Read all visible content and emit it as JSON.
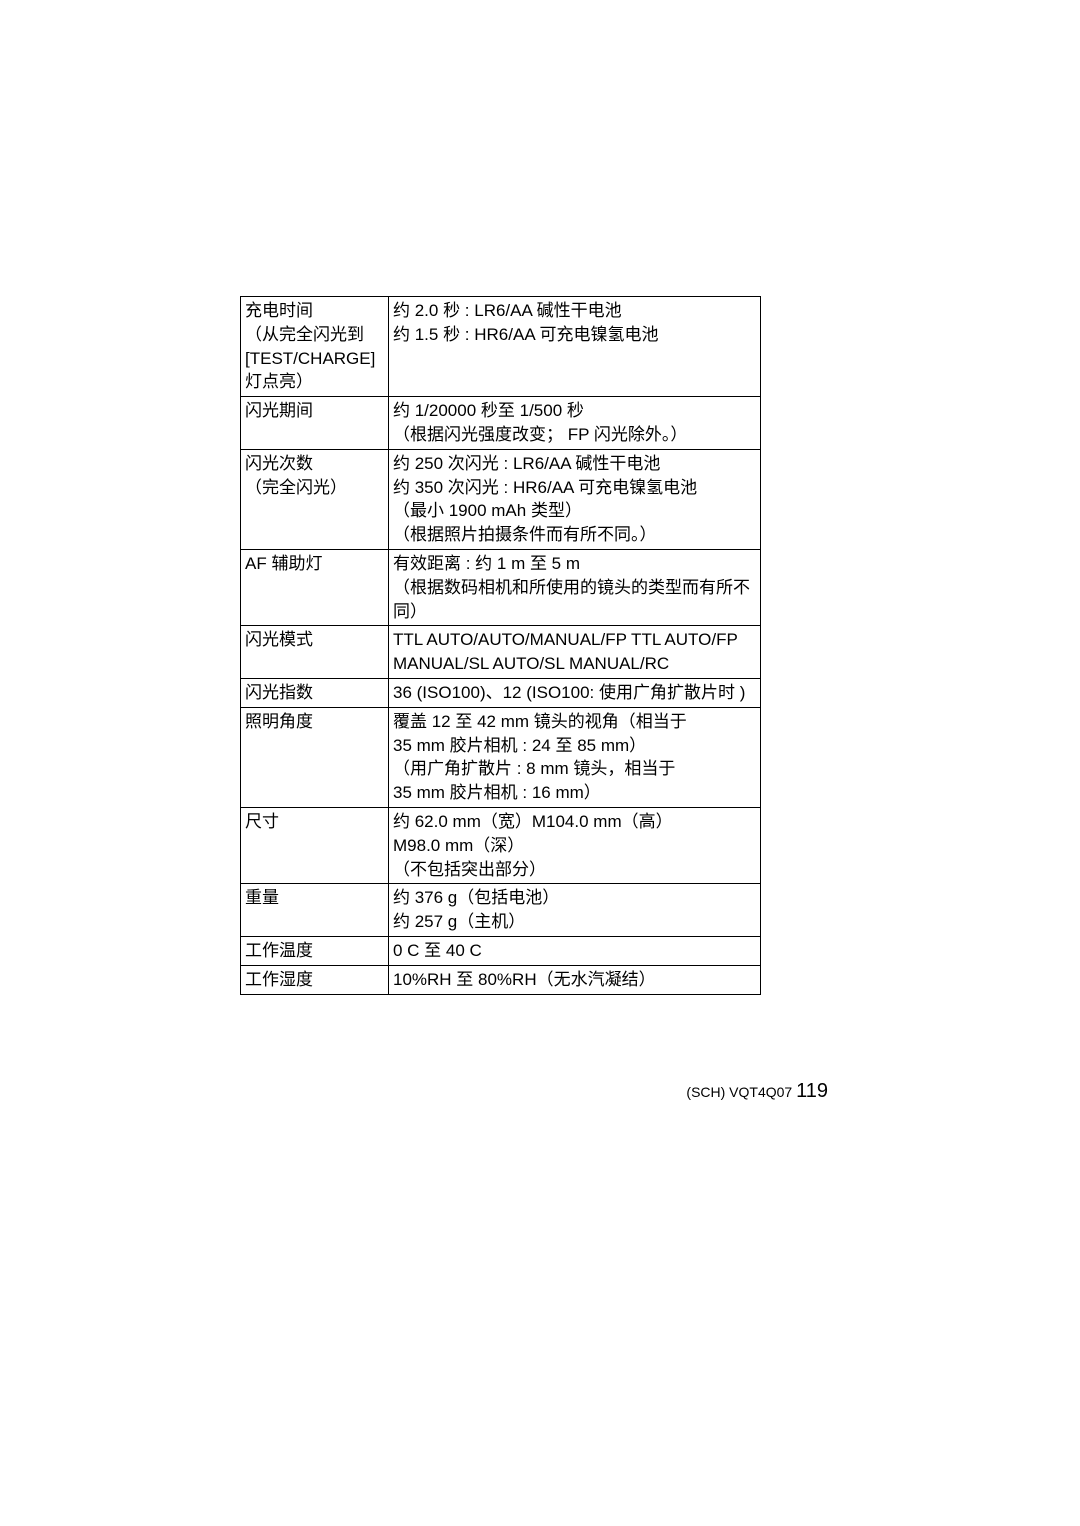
{
  "rows": {
    "r0": {
      "label": [
        "充电时间",
        "（从完全闪光到",
        "[TEST/CHARGE]",
        "灯点亮）"
      ],
      "value": [
        "约 2.0 秒 : LR6/AA 碱性干电池",
        "约 1.5 秒 : HR6/AA 可充电镍氢电池"
      ]
    },
    "r1": {
      "label": [
        "闪光期间"
      ],
      "value": [
        "约 1/20000 秒至 1/500 秒",
        "（根据闪光强度改变； FP 闪光除外。）"
      ]
    },
    "r2": {
      "label": [
        "闪光次数",
        "（完全闪光）"
      ],
      "value": [
        "约 250 次闪光 : LR6/AA 碱性干电池",
        "约 350 次闪光 : HR6/AA 可充电镍氢电池",
        "（最小 1900 mAh 类型）",
        "（根据照片拍摄条件而有所不同。）"
      ]
    },
    "r3": {
      "label": [
        "AF 辅助灯"
      ],
      "value": [
        "有效距离 : 约 1 m 至 5 m",
        "（根据数码相机和所使用的镜头的类型而有所不同）"
      ]
    },
    "r4": {
      "label": [
        "闪光模式"
      ],
      "value": [
        "TTL AUTO/AUTO/MANUAL/FP TTL AUTO/FP MANUAL/SL AUTO/SL MANUAL/RC"
      ]
    },
    "r5": {
      "label": [
        "闪光指数"
      ],
      "value": [
        "36 (ISO100)、12 (ISO100: 使用广角扩散片时 )"
      ]
    },
    "r6": {
      "label": [
        "照明角度"
      ],
      "value": [
        "覆盖 12 至 42 mm 镜头的视角（相当于",
        "35 mm 胶片相机 : 24 至 85 mm）",
        "（用广角扩散片 : 8 mm 镜头，相当于",
        "35 mm 胶片相机 : 16 mm）"
      ]
    },
    "r7": {
      "label": [
        "尺寸"
      ],
      "value": [
        "约  62.0 mm（宽）M104.0 mm（高）",
        "M98.0 mm（深）",
        "（不包括突出部分）"
      ]
    },
    "r8": {
      "label": [
        "重量"
      ],
      "value": [
        "约 376 g（包括电池）",
        "约 257 g（主机）"
      ]
    },
    "r9": {
      "label": [
        "工作温度"
      ],
      "value": [
        "0  C 至 40  C"
      ]
    },
    "r10": {
      "label": [
        "工作湿度"
      ],
      "value": [
        "10%RH 至 80%RH（无水汽凝结）"
      ]
    }
  },
  "footer": {
    "prefix": "(SCH) VQT4Q07 ",
    "page": "119"
  }
}
